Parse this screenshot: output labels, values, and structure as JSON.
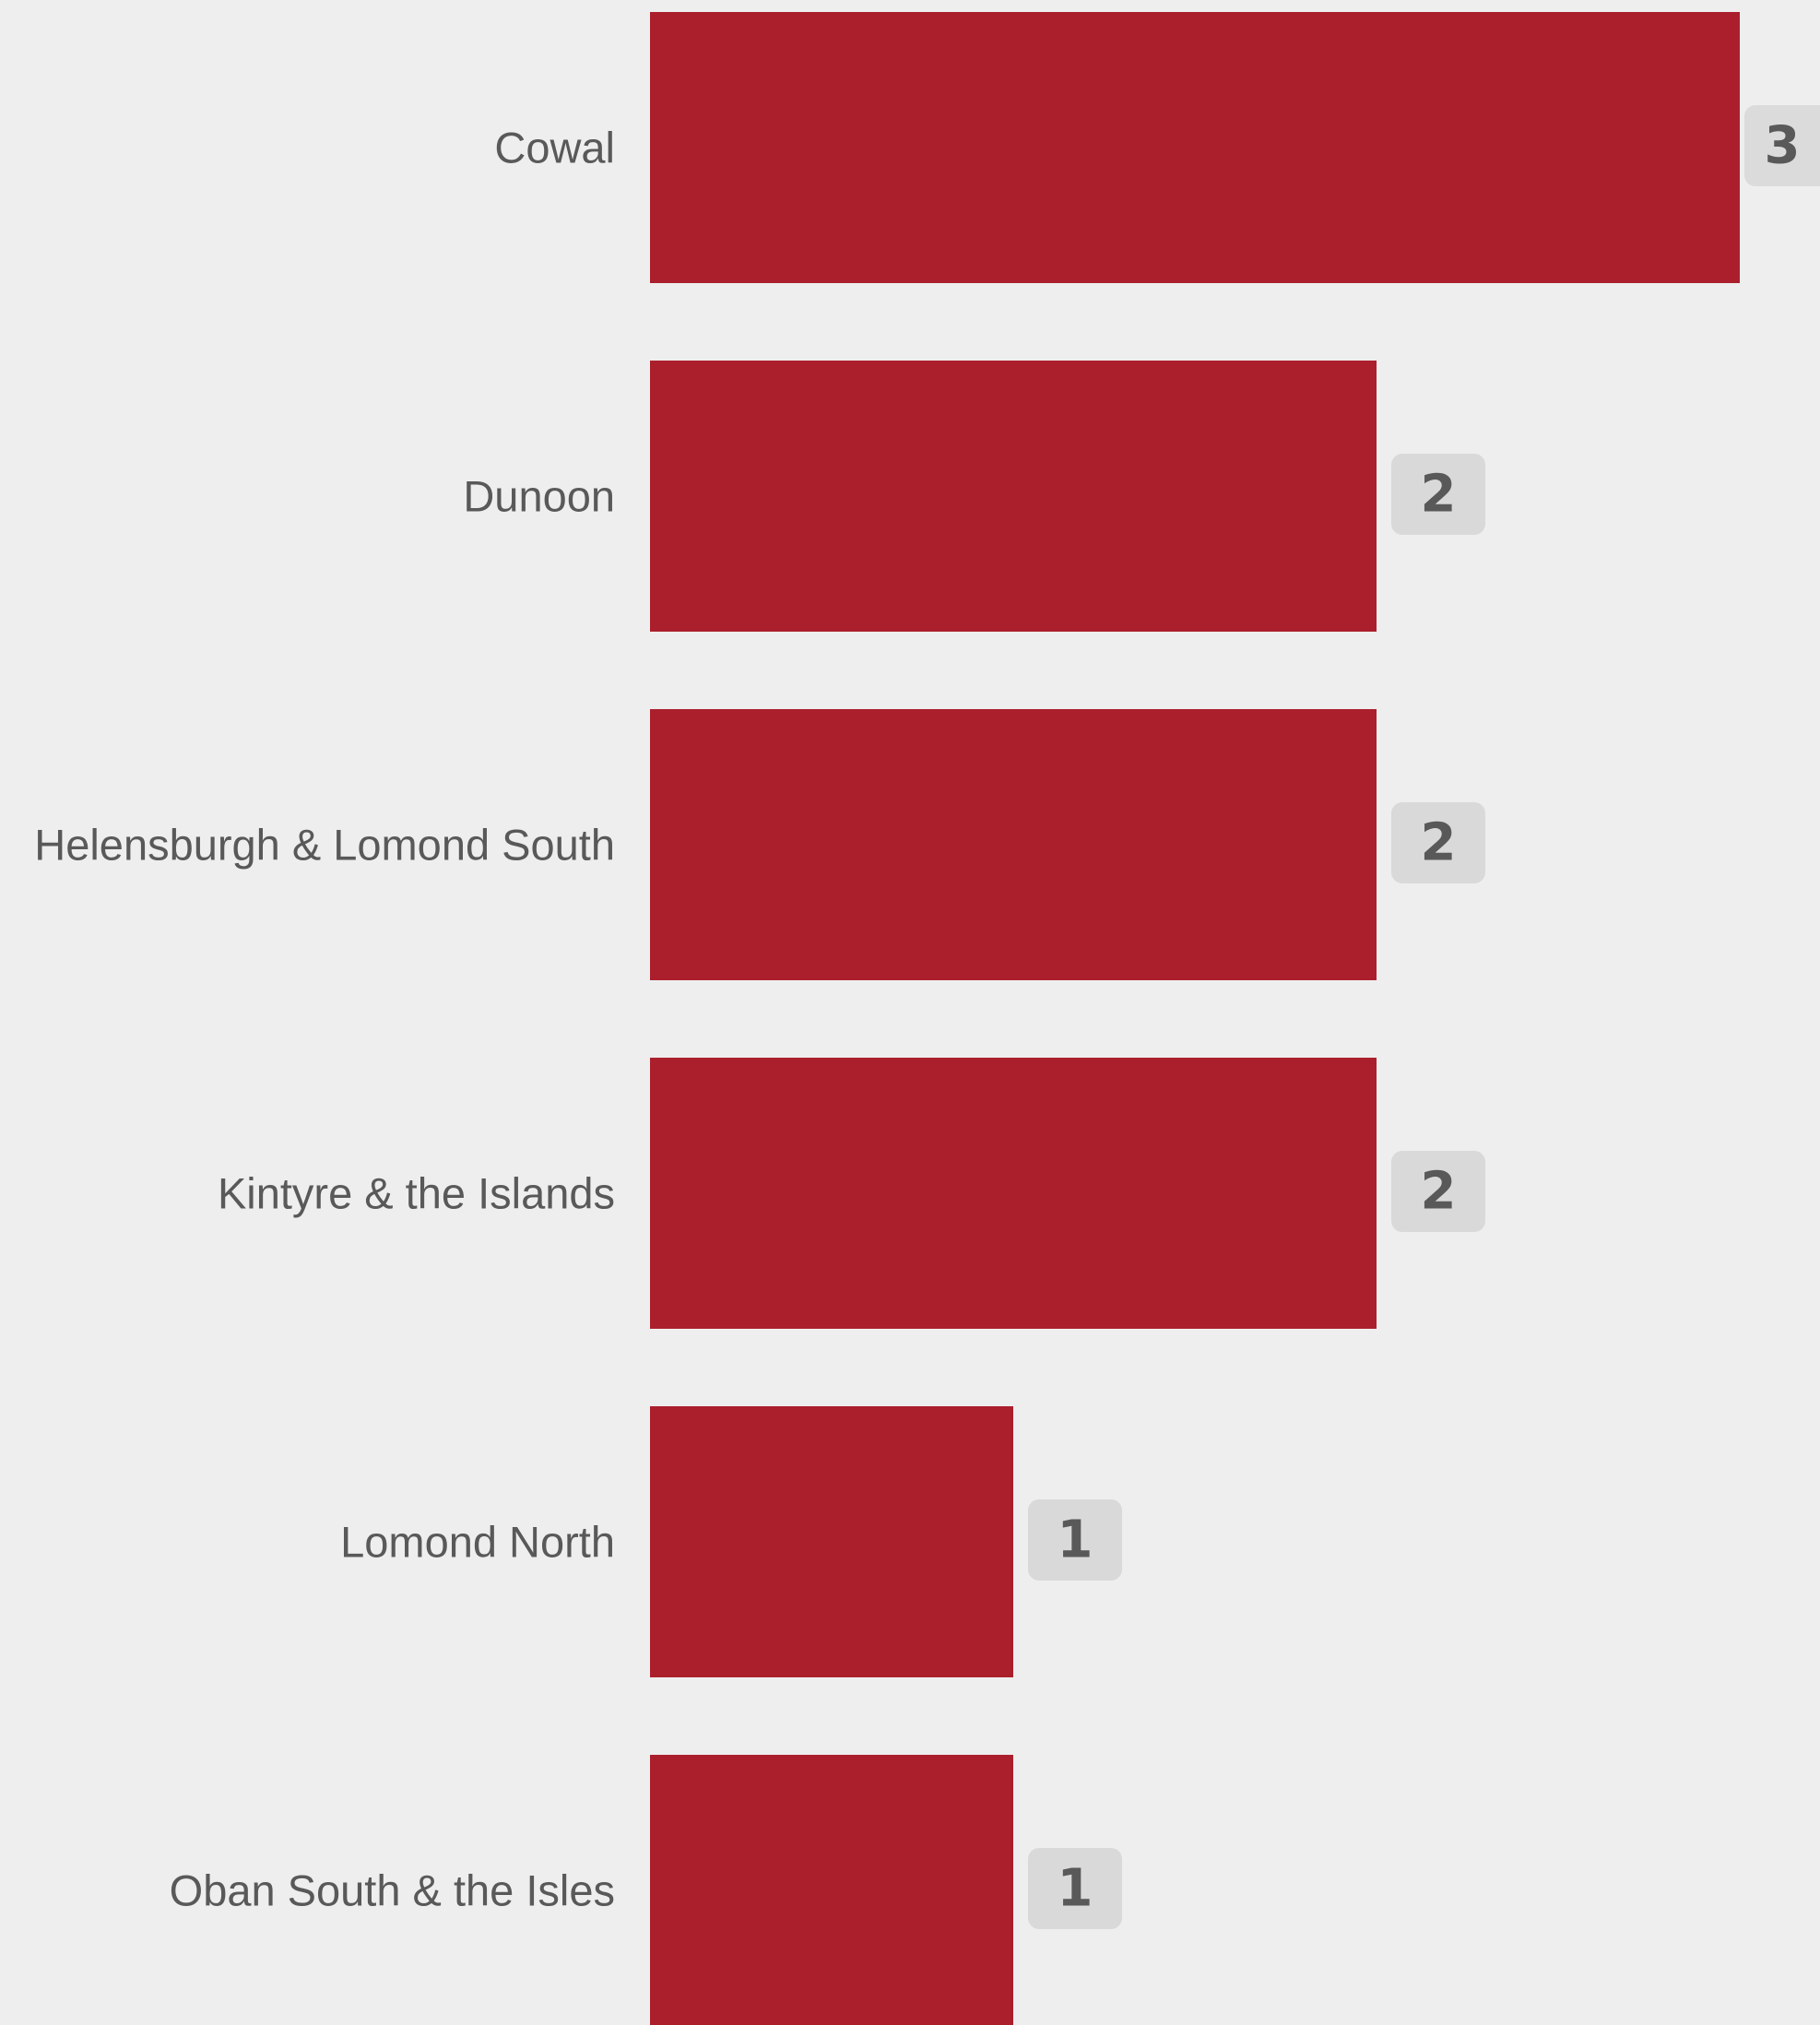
{
  "chart_data": {
    "type": "bar",
    "orientation": "horizontal",
    "categories": [
      "Cowal",
      "Dunoon",
      "Helensburgh & Lomond South",
      "Kintyre & the Islands",
      "Lomond North",
      "Oban South & the Isles"
    ],
    "values": [
      3,
      2,
      2,
      2,
      1,
      1
    ],
    "title": "",
    "xlabel": "",
    "ylabel": "",
    "xlim": [
      0,
      3
    ],
    "grid": false,
    "legend": "none",
    "data_labels": true
  },
  "colors": {
    "background": "#eeeeee",
    "bar": "#ab1f2d",
    "label_text": "#595959",
    "value_box": "#d9d9d9"
  }
}
